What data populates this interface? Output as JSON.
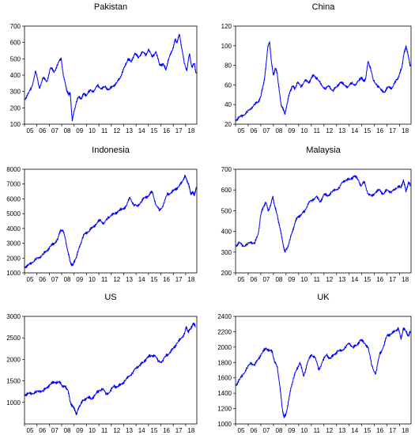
{
  "chart_data": [
    {
      "type": "line",
      "title": "Pakistan",
      "xlabel": "",
      "ylabel": "",
      "xlim": [
        2005,
        2018.9
      ],
      "ylim": [
        100,
        700
      ],
      "x_ticks": [
        "05",
        "06",
        "07",
        "08",
        "09",
        "10",
        "11",
        "12",
        "13",
        "14",
        "15",
        "16",
        "17",
        "18"
      ],
      "y_ticks": [
        100,
        200,
        300,
        400,
        500,
        600,
        700
      ],
      "grid": false,
      "series": [
        {
          "color": "#0000ff",
          "x": [
            2005,
            2005.3,
            2005.6,
            2005.9,
            2006.2,
            2006.5,
            2006.8,
            2007.1,
            2007.4,
            2007.7,
            2007.95,
            2008.15,
            2008.35,
            2008.45,
            2008.55,
            2008.6,
            2008.7,
            2008.85,
            2009.0,
            2009.2,
            2009.4,
            2009.6,
            2009.8,
            2010.0,
            2010.3,
            2010.6,
            2010.9,
            2011.2,
            2011.5,
            2011.8,
            2012.1,
            2012.4,
            2012.7,
            2012.9,
            2013.1,
            2013.35,
            2013.6,
            2013.9,
            2014.2,
            2014.5,
            2014.8,
            2015.0,
            2015.3,
            2015.6,
            2015.9,
            2016.2,
            2016.4,
            2016.6,
            2016.8,
            2017.0,
            2017.15,
            2017.3,
            2017.5,
            2017.7,
            2017.9,
            2018.1,
            2018.3,
            2018.5,
            2018.7,
            2018.85
          ],
          "y": [
            250,
            285,
            330,
            425,
            320,
            385,
            360,
            445,
            420,
            470,
            505,
            390,
            330,
            295,
            285,
            285,
            285,
            120,
            180,
            240,
            270,
            255,
            290,
            275,
            310,
            300,
            340,
            315,
            330,
            310,
            330,
            350,
            380,
            420,
            455,
            500,
            480,
            535,
            505,
            545,
            520,
            560,
            510,
            545,
            460,
            470,
            430,
            495,
            530,
            570,
            620,
            600,
            650,
            560,
            470,
            430,
            530,
            450,
            470,
            410
          ]
        }
      ]
    },
    {
      "type": "line",
      "title": "China",
      "xlabel": "",
      "ylabel": "",
      "xlim": [
        2005,
        2018.9
      ],
      "ylim": [
        20,
        120
      ],
      "x_ticks": [
        "05",
        "06",
        "07",
        "08",
        "09",
        "10",
        "11",
        "12",
        "13",
        "14",
        "15",
        "16",
        "17",
        "18"
      ],
      "y_ticks": [
        20,
        40,
        60,
        80,
        100,
        120
      ],
      "grid": false,
      "series": [
        {
          "color": "#0000ff",
          "x": [
            2005,
            2005.3,
            2005.6,
            2005.9,
            2006.2,
            2006.5,
            2006.8,
            2007.0,
            2007.15,
            2007.3,
            2007.4,
            2007.55,
            2007.7,
            2007.85,
            2008.0,
            2008.15,
            2008.3,
            2008.45,
            2008.6,
            2008.75,
            2008.9,
            2009.1,
            2009.3,
            2009.5,
            2009.7,
            2009.9,
            2010.2,
            2010.5,
            2010.8,
            2011.0,
            2011.2,
            2011.5,
            2011.8,
            2012.1,
            2012.4,
            2012.7,
            2013.0,
            2013.3,
            2013.6,
            2013.9,
            2014.2,
            2014.5,
            2014.8,
            2014.95,
            2015.1,
            2015.3,
            2015.5,
            2015.7,
            2015.9,
            2016.2,
            2016.5,
            2016.8,
            2017.1,
            2017.4,
            2017.7,
            2017.9,
            2018.05,
            2018.2,
            2018.35,
            2018.5,
            2018.7,
            2018.85
          ],
          "y": [
            24,
            27,
            29,
            32,
            36,
            40,
            43,
            48,
            58,
            66,
            79,
            98,
            104,
            82,
            70,
            77,
            72,
            55,
            40,
            36,
            30,
            42,
            53,
            59,
            56,
            63,
            58,
            65,
            62,
            67,
            70,
            66,
            60,
            56,
            59,
            54,
            58,
            63,
            60,
            58,
            62,
            60,
            65,
            68,
            64,
            66,
            84,
            77,
            65,
            60,
            55,
            53,
            58,
            57,
            64,
            68,
            73,
            80,
            92,
            100,
            88,
            79
          ]
        }
      ]
    },
    {
      "type": "line",
      "title": "Indonesia",
      "xlabel": "",
      "ylabel": "",
      "xlim": [
        2005,
        2018.9
      ],
      "ylim": [
        1000,
        8000
      ],
      "x_ticks": [
        "05",
        "06",
        "07",
        "08",
        "09",
        "10",
        "11",
        "12",
        "13",
        "14",
        "15",
        "16",
        "17",
        "18"
      ],
      "y_ticks": [
        1000,
        2000,
        3000,
        4000,
        5000,
        6000,
        7000,
        8000
      ],
      "grid": false,
      "series": [
        {
          "color": "#0000ff",
          "x": [
            2005,
            2005.3,
            2005.6,
            2005.9,
            2006.2,
            2006.5,
            2006.8,
            2007.1,
            2007.4,
            2007.7,
            2007.9,
            2008.1,
            2008.3,
            2008.5,
            2008.7,
            2008.9,
            2009.1,
            2009.3,
            2009.5,
            2009.7,
            2009.9,
            2010.2,
            2010.5,
            2010.8,
            2011.1,
            2011.4,
            2011.7,
            2012.0,
            2012.3,
            2012.6,
            2012.9,
            2013.2,
            2013.5,
            2013.8,
            2014.1,
            2014.4,
            2014.7,
            2015.0,
            2015.3,
            2015.6,
            2015.9,
            2016.2,
            2016.5,
            2016.8,
            2017.1,
            2017.4,
            2017.7,
            2017.95,
            2018.1,
            2018.25,
            2018.4,
            2018.55,
            2018.7,
            2018.85
          ],
          "y": [
            1400,
            1500,
            1700,
            1900,
            2050,
            2250,
            2500,
            2800,
            3000,
            3300,
            3900,
            3850,
            3300,
            2400,
            1700,
            1500,
            1900,
            2400,
            2900,
            3400,
            3700,
            3800,
            4100,
            4300,
            4600,
            4300,
            4700,
            4900,
            5000,
            5200,
            5300,
            5500,
            6100,
            5600,
            5500,
            5800,
            6100,
            6200,
            6500,
            5600,
            5200,
            5600,
            6300,
            6400,
            6600,
            6800,
            7100,
            7600,
            7200,
            7000,
            6300,
            6500,
            6200,
            6800
          ]
        }
      ]
    },
    {
      "type": "line",
      "title": "Malaysia",
      "xlabel": "",
      "ylabel": "",
      "xlim": [
        2005,
        2018.9
      ],
      "ylim": [
        200,
        700
      ],
      "x_ticks": [
        "05",
        "06",
        "07",
        "08",
        "09",
        "10",
        "11",
        "12",
        "13",
        "14",
        "15",
        "16",
        "17",
        "18"
      ],
      "y_ticks": [
        200,
        300,
        400,
        500,
        600,
        700
      ],
      "grid": false,
      "series": [
        {
          "color": "#0000ff",
          "x": [
            2005,
            2005.3,
            2005.6,
            2005.9,
            2006.2,
            2006.5,
            2006.8,
            2007.0,
            2007.2,
            2007.4,
            2007.6,
            2007.8,
            2007.95,
            2008.1,
            2008.3,
            2008.5,
            2008.7,
            2008.9,
            2009.1,
            2009.3,
            2009.5,
            2009.7,
            2009.9,
            2010.2,
            2010.5,
            2010.8,
            2011.1,
            2011.4,
            2011.7,
            2012.0,
            2012.3,
            2012.6,
            2012.9,
            2013.2,
            2013.5,
            2013.8,
            2014.1,
            2014.4,
            2014.7,
            2014.95,
            2015.2,
            2015.5,
            2015.8,
            2016.1,
            2016.4,
            2016.7,
            2017.0,
            2017.3,
            2017.6,
            2017.9,
            2018.1,
            2018.3,
            2018.5,
            2018.7,
            2018.85
          ],
          "y": [
            330,
            345,
            330,
            335,
            350,
            340,
            390,
            480,
            520,
            540,
            500,
            530,
            570,
            520,
            480,
            420,
            360,
            300,
            320,
            360,
            400,
            440,
            470,
            480,
            500,
            540,
            550,
            570,
            540,
            580,
            570,
            590,
            600,
            610,
            640,
            650,
            650,
            670,
            650,
            620,
            640,
            580,
            570,
            590,
            600,
            580,
            600,
            590,
            600,
            620,
            610,
            650,
            590,
            640,
            620
          ]
        }
      ]
    },
    {
      "type": "line",
      "title": "US",
      "xlabel": "",
      "ylabel": "",
      "xlim": [
        2005,
        2018.9
      ],
      "ylim": [
        500,
        3000
      ],
      "x_ticks": [
        "05",
        "06",
        "07",
        "08",
        "09",
        "10",
        "11",
        "12",
        "13",
        "14",
        "15",
        "16",
        "17",
        "18"
      ],
      "y_ticks": [
        1000,
        1500,
        2000,
        2500,
        3000
      ],
      "grid": false,
      "series": [
        {
          "color": "#0000ff",
          "x": [
            2005,
            2005.3,
            2005.6,
            2005.9,
            2006.2,
            2006.5,
            2006.8,
            2007.1,
            2007.4,
            2007.7,
            2007.9,
            2008.1,
            2008.3,
            2008.5,
            2008.7,
            2008.9,
            2009.1,
            2009.2,
            2009.4,
            2009.6,
            2009.8,
            2010.1,
            2010.4,
            2010.7,
            2011.0,
            2011.3,
            2011.6,
            2011.9,
            2012.2,
            2012.5,
            2012.8,
            2013.1,
            2013.4,
            2013.7,
            2014.0,
            2014.3,
            2014.6,
            2014.9,
            2015.2,
            2015.5,
            2015.8,
            2016.1,
            2016.4,
            2016.7,
            2017.0,
            2017.3,
            2017.6,
            2017.9,
            2018.05,
            2018.2,
            2018.4,
            2018.6,
            2018.8
          ],
          "y": [
            1180,
            1200,
            1210,
            1230,
            1270,
            1260,
            1350,
            1420,
            1480,
            1460,
            1470,
            1350,
            1380,
            1280,
            1000,
            900,
            800,
            720,
            900,
            1000,
            1060,
            1120,
            1080,
            1180,
            1270,
            1320,
            1190,
            1250,
            1380,
            1360,
            1420,
            1500,
            1600,
            1680,
            1800,
            1870,
            1930,
            2050,
            2080,
            2100,
            1950,
            1950,
            2080,
            2150,
            2250,
            2380,
            2470,
            2600,
            2750,
            2650,
            2700,
            2850,
            2750
          ]
        }
      ]
    },
    {
      "type": "line",
      "title": "UK",
      "xlabel": "",
      "ylabel": "",
      "xlim": [
        2005,
        2018.9
      ],
      "ylim": [
        1000,
        2400
      ],
      "x_ticks": [
        "05",
        "06",
        "07",
        "08",
        "09",
        "10",
        "11",
        "12",
        "13",
        "14",
        "15",
        "16",
        "17",
        "18"
      ],
      "y_ticks": [
        1000,
        1200,
        1400,
        1600,
        1800,
        2000,
        2200,
        2400
      ],
      "grid": false,
      "series": [
        {
          "color": "#0000ff",
          "x": [
            2005,
            2005.3,
            2005.6,
            2005.9,
            2006.2,
            2006.5,
            2006.8,
            2007.1,
            2007.4,
            2007.7,
            2007.9,
            2008.1,
            2008.3,
            2008.5,
            2008.7,
            2008.85,
            2009.0,
            2009.2,
            2009.4,
            2009.6,
            2009.8,
            2010.1,
            2010.4,
            2010.7,
            2011.0,
            2011.3,
            2011.6,
            2011.9,
            2012.2,
            2012.5,
            2012.8,
            2013.1,
            2013.4,
            2013.7,
            2014.0,
            2014.3,
            2014.6,
            2014.9,
            2015.2,
            2015.5,
            2015.8,
            2016.1,
            2016.4,
            2016.7,
            2017.0,
            2017.3,
            2017.6,
            2017.9,
            2018.1,
            2018.3,
            2018.5,
            2018.7,
            2018.85
          ],
          "y": [
            1500,
            1570,
            1650,
            1720,
            1800,
            1760,
            1850,
            1920,
            1990,
            1950,
            1950,
            1800,
            1750,
            1500,
            1200,
            1080,
            1130,
            1300,
            1480,
            1600,
            1700,
            1800,
            1620,
            1800,
            1900,
            1870,
            1700,
            1820,
            1900,
            1850,
            1900,
            1950,
            1950,
            2000,
            2050,
            2000,
            2020,
            2100,
            2050,
            2000,
            1750,
            1650,
            1900,
            2000,
            2150,
            2170,
            2200,
            2250,
            2100,
            2250,
            2200,
            2150,
            2200
          ]
        }
      ]
    }
  ]
}
